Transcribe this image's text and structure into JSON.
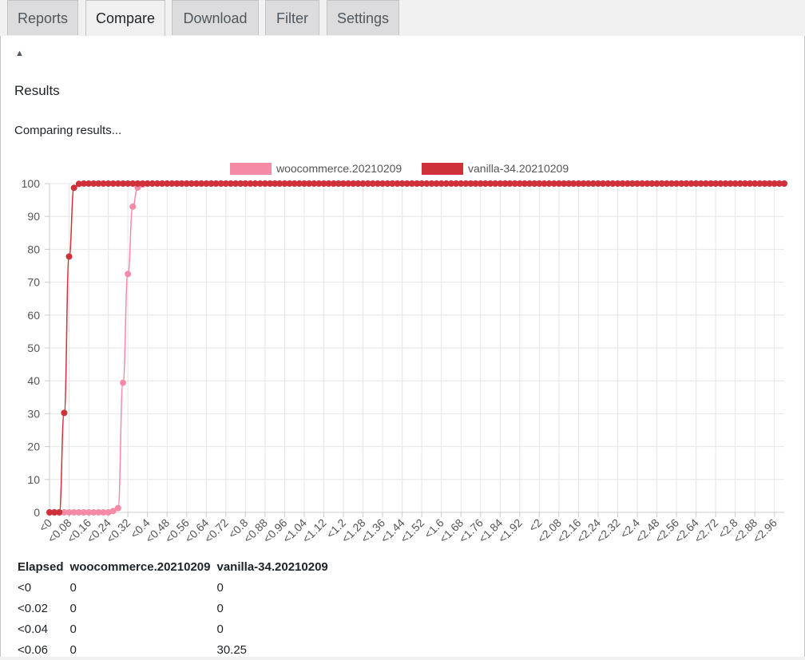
{
  "tabs": [
    {
      "label": "Reports",
      "active": false
    },
    {
      "label": "Compare",
      "active": true
    },
    {
      "label": "Download",
      "active": false
    },
    {
      "label": "Filter",
      "active": false
    },
    {
      "label": "Settings",
      "active": false
    }
  ],
  "panel": {
    "toggle_icon": "triangle-up-icon",
    "results_title": "Results",
    "status_text": "Comparing results..."
  },
  "chart_data": {
    "type": "line",
    "y_range": [
      0,
      100
    ],
    "y_ticks": [
      0,
      10,
      20,
      30,
      40,
      50,
      60,
      70,
      80,
      90,
      100
    ],
    "x_ticks": [
      "<0",
      "<0.08",
      "<0.16",
      "<0.24",
      "<0.32",
      "<0.4",
      "<0.48",
      "<0.56",
      "<0.64",
      "<0.72",
      "<0.8",
      "<0.88",
      "<0.96",
      "<1.04",
      "<1.12",
      "<1.2",
      "<1.28",
      "<1.36",
      "<1.44",
      "<1.52",
      "<1.6",
      "<1.68",
      "<1.76",
      "<1.84",
      "<1.92",
      "<2",
      "<2.08",
      "<2.16",
      "<2.24",
      "<2.32",
      "<2.4",
      "<2.48",
      "<2.56",
      "<2.64",
      "<2.72",
      "<2.8",
      "<2.88",
      "<2.96"
    ],
    "x_range": [
      0,
      3.0
    ],
    "grid": true,
    "legend_position": "top",
    "series": [
      {
        "name": "woocommerce.20210209",
        "color": "#f48aa6",
        "values": [
          0,
          0,
          0,
          0,
          0,
          0,
          0,
          0,
          0,
          0,
          0,
          0,
          0,
          0.4,
          1.3,
          39.4,
          72.5,
          93,
          98.8,
          99.7,
          100
        ]
      },
      {
        "name": "vanilla-34.20210209",
        "color": "#d0303a",
        "values": [
          0,
          0,
          0,
          30.25,
          77.8,
          98.7,
          99.9,
          100,
          100,
          100,
          100,
          100,
          100,
          100,
          100,
          100
        ]
      }
    ]
  },
  "table": {
    "headers": [
      "Elapsed",
      "woocommerce.20210209",
      "vanilla-34.20210209"
    ],
    "rows": [
      [
        "<0",
        "0",
        "0"
      ],
      [
        "<0.02",
        "0",
        "0"
      ],
      [
        "<0.04",
        "0",
        "0"
      ],
      [
        "<0.06",
        "0",
        "30.25"
      ]
    ]
  }
}
